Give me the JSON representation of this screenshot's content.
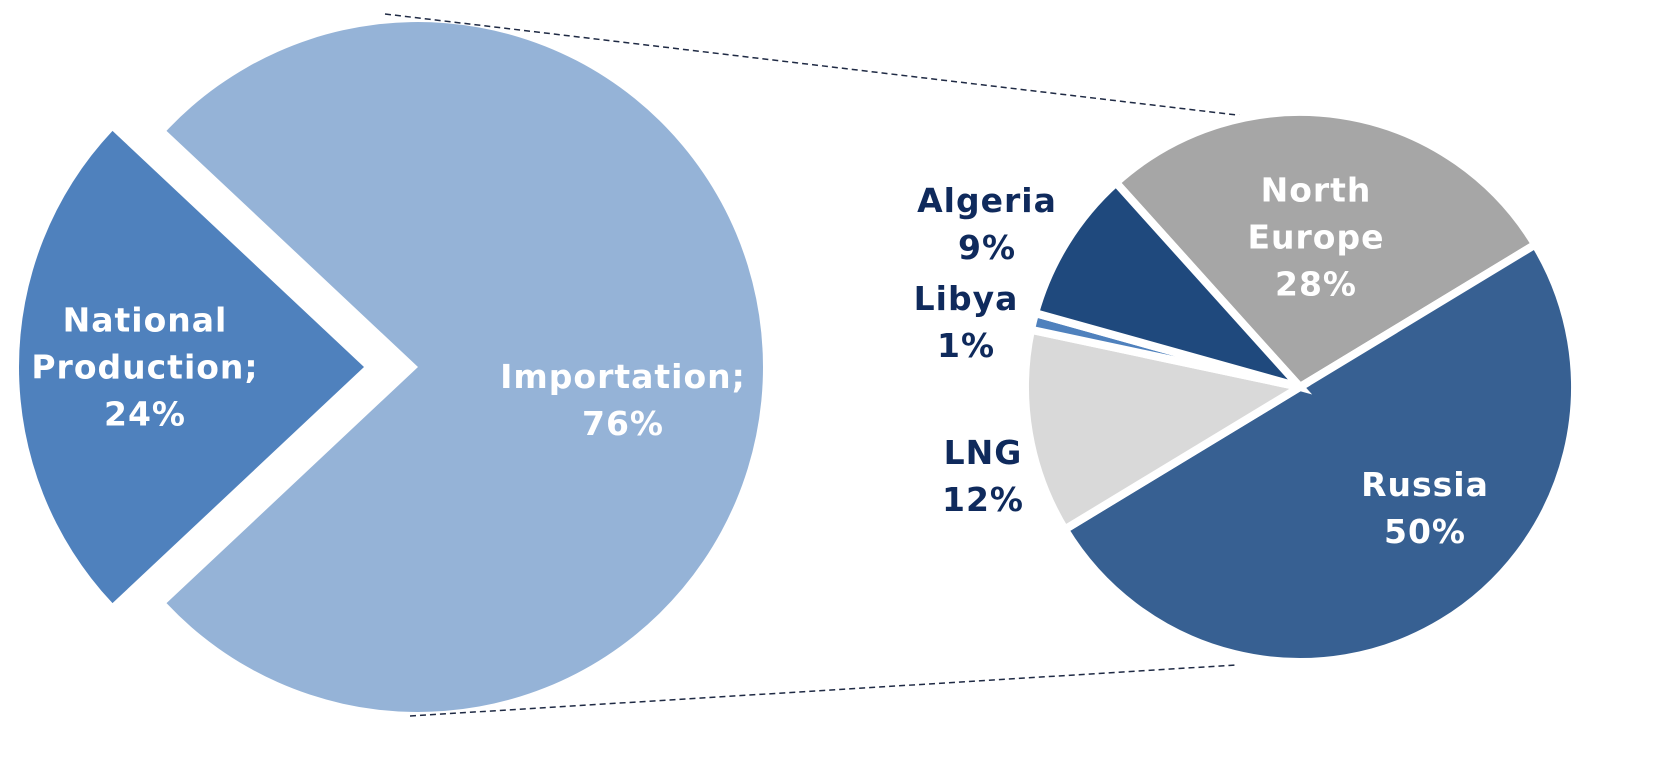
{
  "chart_data": [
    {
      "type": "pie",
      "categories": [
        "National Production;",
        "Importation;"
      ],
      "values": [
        24,
        76
      ],
      "value_labels": [
        "24%",
        "76%"
      ],
      "colors": [
        "#4f81bd",
        "#95b3d7"
      ]
    },
    {
      "type": "pie",
      "categories": [
        "North Europe",
        "Russia",
        "LNG",
        "Libya",
        "Algeria"
      ],
      "values": [
        28,
        50,
        12,
        1,
        9
      ],
      "value_labels": [
        "28%",
        "50%",
        "12%",
        "1%",
        "9%"
      ],
      "colors": [
        "#a6a6a6",
        "#376092",
        "#d9d9d9",
        "#4f81bd",
        "#1f497d"
      ]
    }
  ]
}
